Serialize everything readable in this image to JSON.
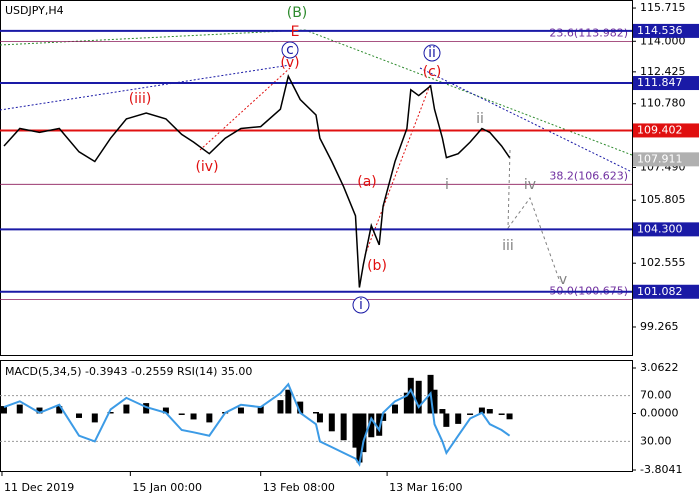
{
  "chart_data": {
    "type": "line",
    "title": "USDJPY,H4",
    "color": "#000000",
    "x": [
      1,
      5,
      10,
      15,
      20,
      24,
      28,
      32,
      37,
      42,
      46,
      49,
      53,
      57,
      61,
      66,
      71,
      73,
      76,
      80,
      81,
      84,
      87,
      90,
      91,
      92,
      94,
      96,
      97,
      100,
      103,
      104,
      106,
      109,
      110,
      112,
      113,
      116,
      119,
      122,
      124,
      127,
      129
    ],
    "values": [
      108.6,
      109.5,
      109.3,
      109.5,
      108.3,
      107.8,
      109.0,
      110.0,
      110.3,
      110.0,
      109.2,
      108.8,
      108.2,
      109.0,
      109.5,
      109.6,
      110.5,
      112.2,
      111.0,
      110.2,
      109.0,
      107.8,
      106.5,
      105.0,
      101.3,
      102.5,
      104.5,
      103.5,
      105.5,
      107.8,
      109.5,
      111.5,
      111.2,
      111.7,
      110.5,
      109.0,
      108.0,
      108.2,
      108.8,
      109.5,
      109.3,
      108.6,
      108.0
    ],
    "xlim": [
      0,
      160
    ],
    "xticks": [
      {
        "value": 0.5,
        "label": "11 Dec 2019"
      },
      {
        "value": 33,
        "label": "15 Jan 00:00"
      },
      {
        "value": 66,
        "label": "13 Feb 08:00"
      },
      {
        "value": 98,
        "label": "13 Mar 16:00"
      }
    ],
    "ylim": [
      97.82,
      116.13
    ],
    "yticks": [
      115.715,
      {
        "value": 114,
        "label": "114.000"
      },
      112.425,
      {
        "value": 110.78,
        "label": "110.780"
      },
      {
        "value": 107.49,
        "label": "107.490"
      },
      105.805,
      102.555,
      99.265
    ],
    "levels": [
      {
        "value": 114.536,
        "label": "114.536",
        "color": "#1a1aa6",
        "line": true
      },
      {
        "value": 111.847,
        "label": "111.847",
        "color": "#1a1aa6",
        "line": true
      },
      {
        "value": 109.402,
        "label": "109.402",
        "color": "#e01010",
        "line": true
      },
      {
        "value": 107.911,
        "label": "107.911",
        "color": "#b0b0b0",
        "line": false
      },
      {
        "value": 104.3,
        "label": "104.300",
        "color": "#1a1aa6",
        "line": true
      },
      {
        "value": 101.082,
        "label": "101.082",
        "color": "#1a1aa6",
        "line": true
      }
    ],
    "fibo": [
      {
        "value": 113.982,
        "label": "23.6(113.982)"
      },
      {
        "value": 106.623,
        "label": "38.2(106.623)"
      },
      {
        "value": 100.675,
        "label": "50.0(100.675)"
      }
    ],
    "annotations": [
      {
        "text": "(B)",
        "color": "#2e8b2e",
        "circled": false
      },
      {
        "text": "E",
        "color": "#e01010",
        "circled": false
      },
      {
        "text": "c",
        "color": "#1a1aa6",
        "circled": true
      },
      {
        "text": "(v)",
        "color": "#e01010",
        "circled": false
      },
      {
        "text": "(iii)",
        "color": "#e01010",
        "circled": false
      },
      {
        "text": "(iv)",
        "color": "#e01010",
        "circled": false
      },
      {
        "text": "(a)",
        "color": "#e01010",
        "circled": false
      },
      {
        "text": "(b)",
        "color": "#e01010",
        "circled": false
      },
      {
        "text": "i",
        "color": "#1a1aa6",
        "circled": true
      },
      {
        "text": "ii",
        "color": "#1a1aa6",
        "circled": true
      },
      {
        "text": "(c)",
        "color": "#e01010",
        "circled": false
      },
      {
        "text": "ii",
        "color": "#808080",
        "circled": false
      },
      {
        "text": "i",
        "color": "#808080",
        "circled": false
      },
      {
        "text": "iii",
        "color": "#808080",
        "circled": false
      },
      {
        "text": "iv",
        "color": "#808080",
        "circled": false
      },
      {
        "text": "v",
        "color": "#808080",
        "circled": false
      }
    ],
    "indicator": {
      "label": "MACD(5,34,5) -0.3943 -0.2559 RSI(14) 35.00",
      "macd_color": "#000000",
      "rsi_color": "#3c9be6",
      "macd": [
        0.5,
        0.6,
        0.4,
        0.5,
        -0.3,
        -0.6,
        0.1,
        0.6,
        0.7,
        0.4,
        -0.1,
        -0.4,
        -0.6,
        0.1,
        0.4,
        0.5,
        0.9,
        1.6,
        0.8,
        0.1,
        -0.6,
        -1.2,
        -1.8,
        -2.3,
        -3.3,
        -2.6,
        -1.6,
        -1.5,
        -0.5,
        0.6,
        1.4,
        2.4,
        2.2,
        2.6,
        1.6,
        0.3,
        -0.9,
        -0.7,
        -0.1,
        0.4,
        0.3,
        -0.1,
        -0.39
      ],
      "rsi": [
        60,
        65,
        55,
        62,
        35,
        30,
        58,
        68,
        60,
        55,
        40,
        38,
        35,
        55,
        62,
        60,
        72,
        80,
        55,
        45,
        30,
        25,
        20,
        15,
        10,
        30,
        50,
        40,
        55,
        65,
        70,
        75,
        60,
        72,
        45,
        30,
        20,
        35,
        50,
        55,
        45,
        40,
        35
      ],
      "ylim": [
        -3.939,
        3.601
      ],
      "yticks": [
        3.0622,
        {
          "value": 0,
          "label": "0.0000"
        },
        -3.8041
      ],
      "rsi_ylim": [
        3.3,
        101.1
      ],
      "rsi_ticks": [
        {
          "value": 70,
          "label": "70.00"
        },
        {
          "value": 30,
          "label": "30.00"
        }
      ]
    }
  }
}
